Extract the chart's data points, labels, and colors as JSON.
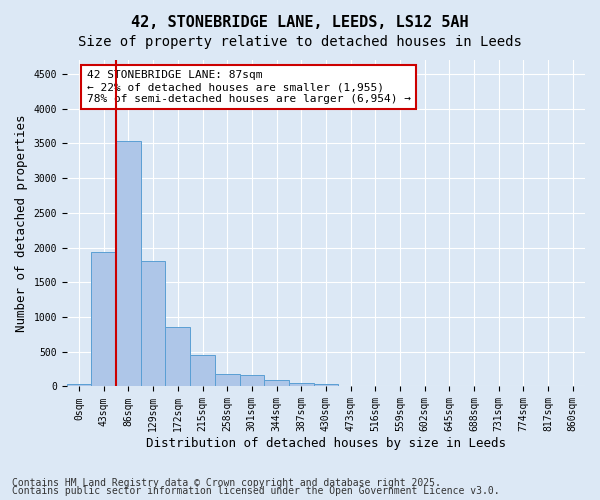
{
  "title_line1": "42, STONEBRIDGE LANE, LEEDS, LS12 5AH",
  "title_line2": "Size of property relative to detached houses in Leeds",
  "xlabel": "Distribution of detached houses by size in Leeds",
  "ylabel": "Number of detached properties",
  "bin_labels": [
    "0sqm",
    "43sqm",
    "86sqm",
    "129sqm",
    "172sqm",
    "215sqm",
    "258sqm",
    "301sqm",
    "344sqm",
    "387sqm",
    "430sqm",
    "473sqm",
    "516sqm",
    "559sqm",
    "602sqm",
    "645sqm",
    "688sqm",
    "731sqm",
    "774sqm",
    "817sqm",
    "860sqm"
  ],
  "bar_values": [
    30,
    1940,
    3530,
    1810,
    855,
    450,
    175,
    170,
    90,
    55,
    35,
    10,
    5,
    2,
    1,
    0,
    0,
    0,
    0,
    0,
    0
  ],
  "bar_color": "#aec6e8",
  "bar_edge_color": "#5a9fd4",
  "vline_x_index": 2,
  "vline_color": "#cc0000",
  "annotation_text": "42 STONEBRIDGE LANE: 87sqm\n← 22% of detached houses are smaller (1,955)\n78% of semi-detached houses are larger (6,954) →",
  "annotation_box_color": "#ffffff",
  "annotation_box_edge_color": "#cc0000",
  "ylim": [
    0,
    4700
  ],
  "yticks": [
    0,
    500,
    1000,
    1500,
    2000,
    2500,
    3000,
    3500,
    4000,
    4500
  ],
  "background_color": "#dce8f5",
  "grid_color": "#ffffff",
  "footer_line1": "Contains HM Land Registry data © Crown copyright and database right 2025.",
  "footer_line2": "Contains public sector information licensed under the Open Government Licence v3.0.",
  "title_fontsize": 11,
  "subtitle_fontsize": 10,
  "axis_label_fontsize": 9,
  "tick_fontsize": 7,
  "annotation_fontsize": 8,
  "footer_fontsize": 7
}
